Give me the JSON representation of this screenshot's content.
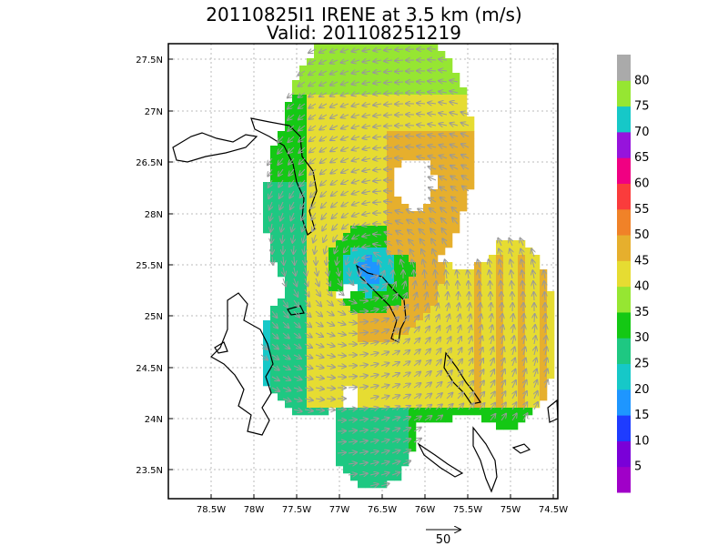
{
  "title": {
    "line1": "20110825I1 IRENE at 3.5 km (m/s)",
    "line2": "Valid: 201108251219"
  },
  "map": {
    "lat_labels": [
      "27.5N",
      "27N",
      "26.5N",
      "28N",
      "25.5N",
      "25N",
      "24.5N",
      "24N",
      "23.5N"
    ],
    "lon_labels": [
      "78.5W",
      "78W",
      "77.5W",
      "77W",
      "76.5W",
      "76W",
      "75.5W",
      "75W",
      "74.5W"
    ]
  },
  "colorbar": {
    "labels": [
      "5",
      "10",
      "15",
      "20",
      "25",
      "30",
      "35",
      "40",
      "45",
      "50",
      "55",
      "60",
      "65",
      "70",
      "75",
      "80"
    ],
    "colors": [
      "#a000c8",
      "#7a00d8",
      "#1e3cff",
      "#1e96ff",
      "#16c8c8",
      "#1ec882",
      "#14c814",
      "#96e632",
      "#e6dc32",
      "#e6af2d",
      "#f08228",
      "#fa3c3c",
      "#f00082",
      "#9614dc",
      "#16c8c8",
      "#96e632",
      "#aaaaaa"
    ]
  },
  "wind_field": {
    "center_lon": -76.65,
    "center_lat": 25.45,
    "color_levels": [
      "#1e96ff",
      "#16c8c8",
      "#1ec882",
      "#14c814",
      "#96e632",
      "#e6dc32",
      "#e6af2d"
    ]
  },
  "reference_vector": {
    "label": "50"
  }
}
